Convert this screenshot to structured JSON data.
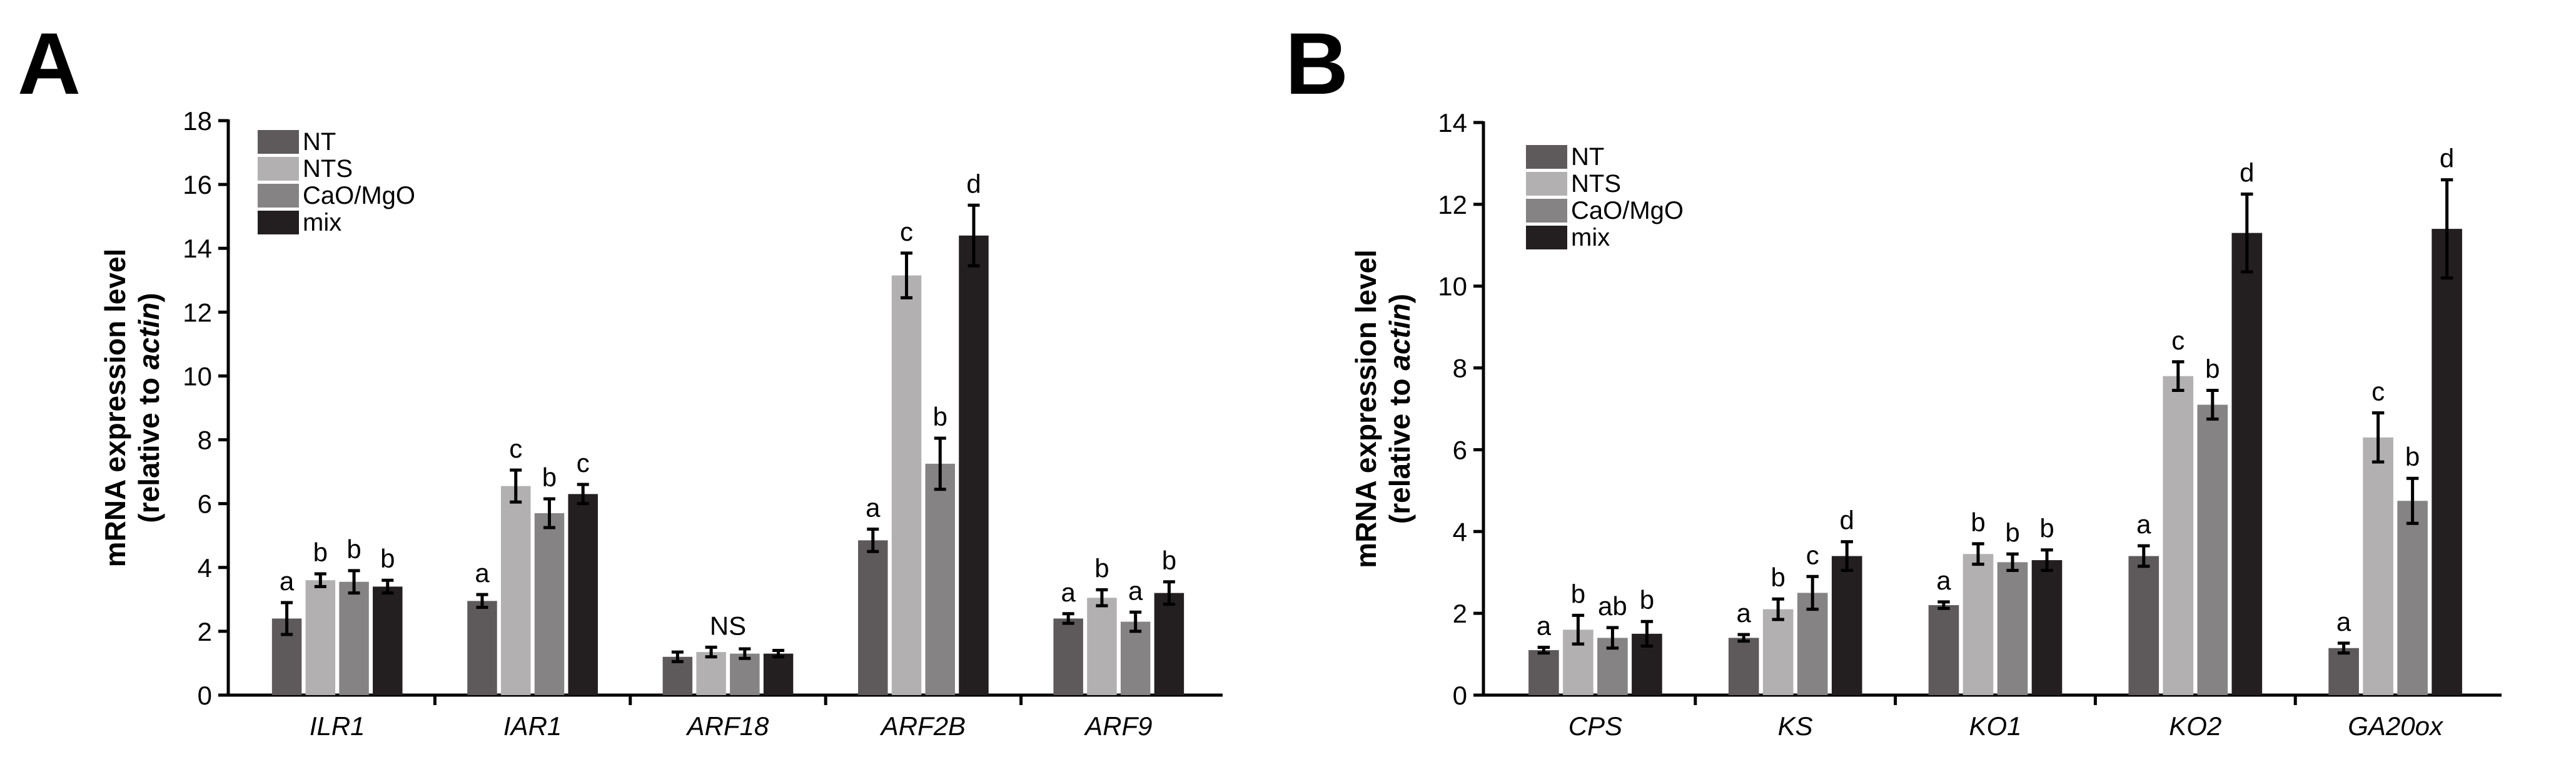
{
  "series_colors": [
    "#5e5a5b",
    "#b3b0b1",
    "#868384",
    "#231f20"
  ],
  "chart_data": [
    {
      "type": "bar",
      "panel": "A",
      "ylabel_line1": "mRNA expression level",
      "ylabel_line2_pre": "(relative to ",
      "ylabel_line2_italic": "actin",
      "ylabel_line2_post": ")",
      "ylim": [
        0,
        18
      ],
      "yticks": [
        0,
        2,
        4,
        6,
        8,
        10,
        12,
        14,
        16,
        18
      ],
      "categories": [
        "ILR1",
        "IAR1",
        "ARF18",
        "ARF2B",
        "ARF9"
      ],
      "series": [
        {
          "name": "NT",
          "values": [
            2.4,
            2.95,
            1.2,
            4.85,
            2.4
          ],
          "errors": [
            0.5,
            0.2,
            0.15,
            0.35,
            0.15
          ],
          "labels": [
            "a",
            "a",
            "",
            "a",
            "a"
          ]
        },
        {
          "name": "NTS",
          "values": [
            3.6,
            6.55,
            1.35,
            13.15,
            3.05
          ],
          "errors": [
            0.2,
            0.5,
            0.15,
            0.7,
            0.25
          ],
          "labels": [
            "b",
            "c",
            "NS",
            "c",
            "b"
          ]
        },
        {
          "name": "CaO/MgO",
          "values": [
            3.55,
            5.7,
            1.3,
            7.25,
            2.3
          ],
          "errors": [
            0.35,
            0.45,
            0.15,
            0.8,
            0.3
          ],
          "labels": [
            "b",
            "b",
            "",
            "b",
            "a"
          ]
        },
        {
          "name": "mix",
          "values": [
            3.4,
            6.3,
            1.3,
            14.4,
            3.2
          ],
          "errors": [
            0.2,
            0.3,
            0.1,
            0.95,
            0.35
          ],
          "labels": [
            "b",
            "c",
            "",
            "d",
            "b"
          ]
        }
      ],
      "legend_placement": "top-left"
    },
    {
      "type": "bar",
      "panel": "B",
      "ylabel_line1": "mRNA expression level",
      "ylabel_line2_pre": "(relative to ",
      "ylabel_line2_italic": "actin",
      "ylabel_line2_post": ")",
      "ylim": [
        0,
        14
      ],
      "yticks": [
        0,
        2,
        4,
        6,
        8,
        10,
        12,
        14
      ],
      "categories": [
        "CPS",
        "KS",
        "KO1",
        "KO2",
        "GA20ox"
      ],
      "series": [
        {
          "name": "NT",
          "values": [
            1.1,
            1.4,
            2.2,
            3.4,
            1.15
          ],
          "errors": [
            0.07,
            0.08,
            0.08,
            0.25,
            0.12
          ],
          "labels": [
            "a",
            "a",
            "a",
            "a",
            "a"
          ]
        },
        {
          "name": "NTS",
          "values": [
            1.6,
            2.1,
            3.45,
            7.8,
            6.3
          ],
          "errors": [
            0.35,
            0.25,
            0.25,
            0.35,
            0.6
          ],
          "labels": [
            "b",
            "b",
            "b",
            "c",
            "c"
          ]
        },
        {
          "name": "CaO/MgO",
          "values": [
            1.4,
            2.5,
            3.25,
            7.1,
            4.75
          ],
          "errors": [
            0.25,
            0.4,
            0.2,
            0.35,
            0.55
          ],
          "labels": [
            "ab",
            "c",
            "b",
            "b",
            "b"
          ]
        },
        {
          "name": "mix",
          "values": [
            1.5,
            3.4,
            3.3,
            11.3,
            11.4
          ],
          "errors": [
            0.3,
            0.35,
            0.25,
            0.95,
            1.2
          ],
          "labels": [
            "b",
            "d",
            "b",
            "d",
            "d"
          ]
        }
      ],
      "legend_placement": "top-left"
    }
  ]
}
